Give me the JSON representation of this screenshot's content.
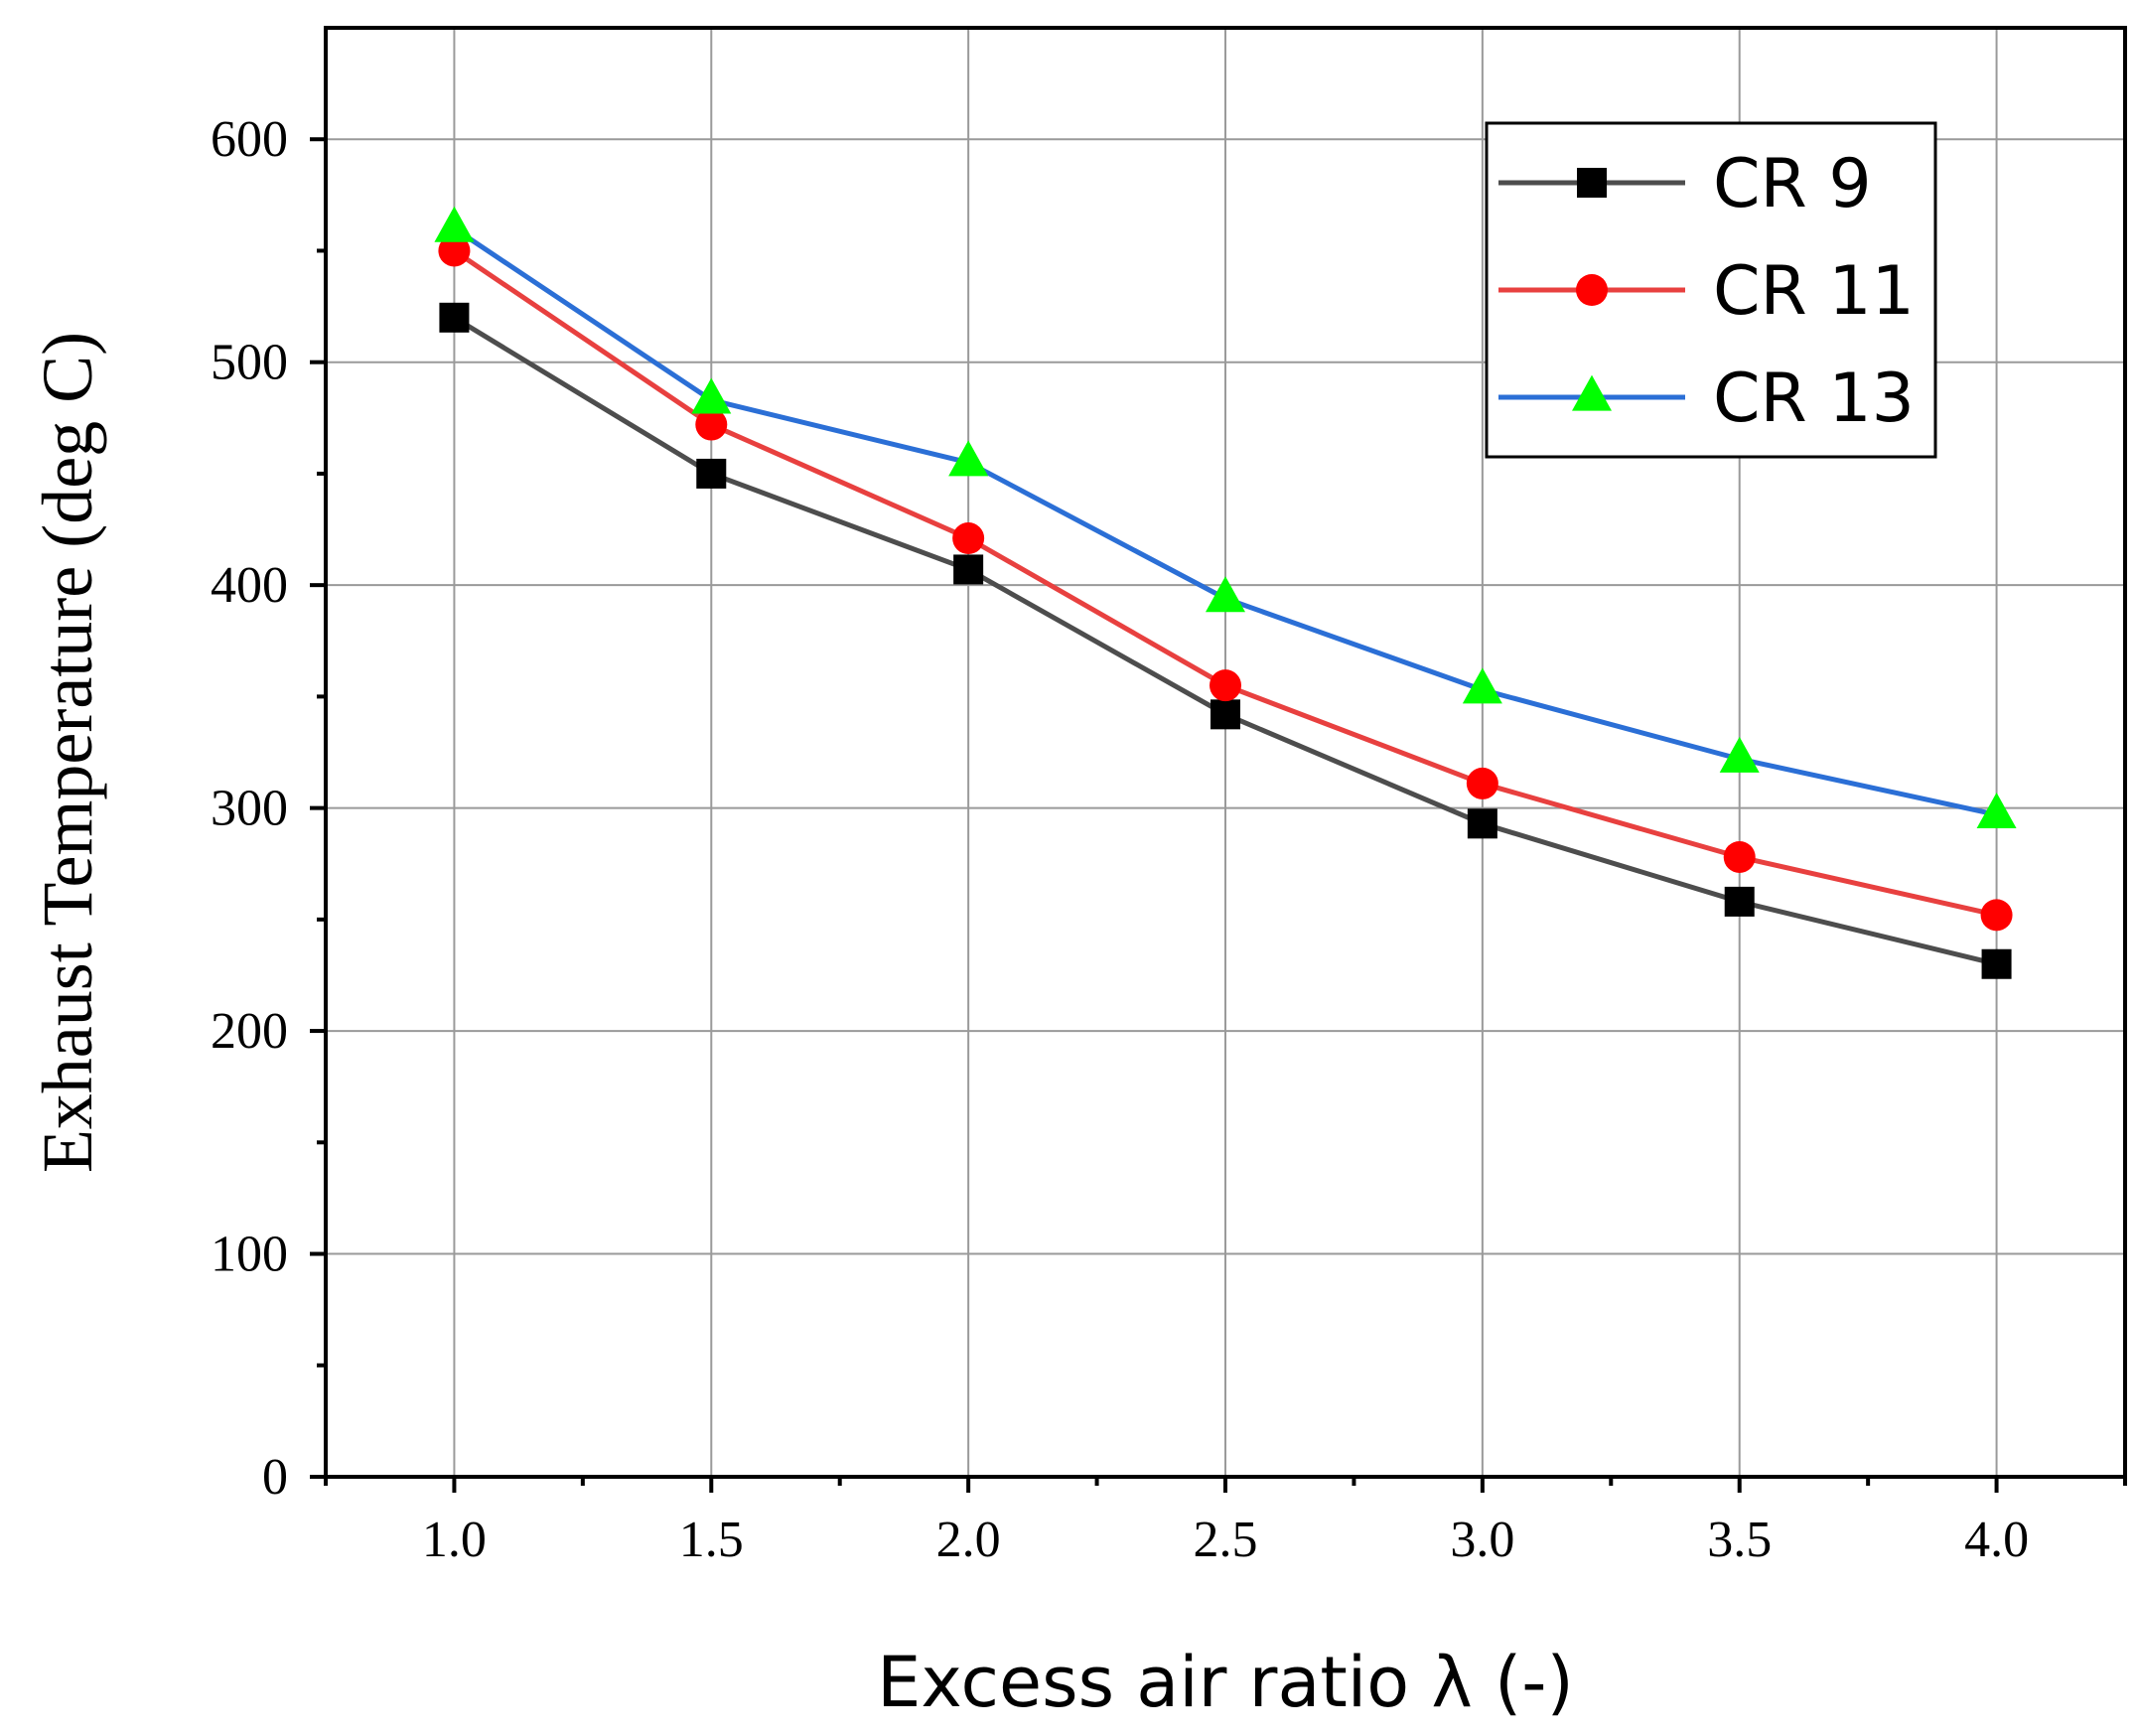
{
  "chart_data": {
    "type": "line",
    "title": "",
    "xlabel": "Excess air ratio λ (-)",
    "ylabel": "Exhaust Temperature (deg C)",
    "x": [
      1.0,
      1.5,
      2.0,
      2.5,
      3.0,
      3.5,
      4.0
    ],
    "xticks": [
      1.0,
      1.5,
      2.0,
      2.5,
      3.0,
      3.5,
      4.0
    ],
    "xtick_labels": [
      "1.0",
      "1.5",
      "2.0",
      "2.5",
      "3.0",
      "3.5",
      "4.0"
    ],
    "yticks": [
      0,
      100,
      200,
      300,
      400,
      500,
      600
    ],
    "ytick_labels": [
      "0",
      "100",
      "200",
      "300",
      "400",
      "500",
      "600"
    ],
    "xlim": [
      0.75,
      4.25
    ],
    "ylim": [
      0,
      650
    ],
    "grid": true,
    "legend_position": "top-right",
    "series": [
      {
        "name": "CR 9",
        "marker": "square",
        "line_color": "#4d4d4d",
        "marker_color": "#000000",
        "values": [
          520,
          450,
          407,
          342,
          293,
          258,
          230
        ]
      },
      {
        "name": "CR 11",
        "marker": "circle",
        "line_color": "#e8403f",
        "marker_color": "#ff0000",
        "values": [
          550,
          472,
          421,
          355,
          311,
          278,
          252
        ]
      },
      {
        "name": "CR 13",
        "marker": "triangle",
        "line_color": "#2b6fd6",
        "marker_color": "#00ff00",
        "values": [
          560,
          483,
          455,
          394,
          353,
          322,
          297
        ]
      }
    ]
  }
}
